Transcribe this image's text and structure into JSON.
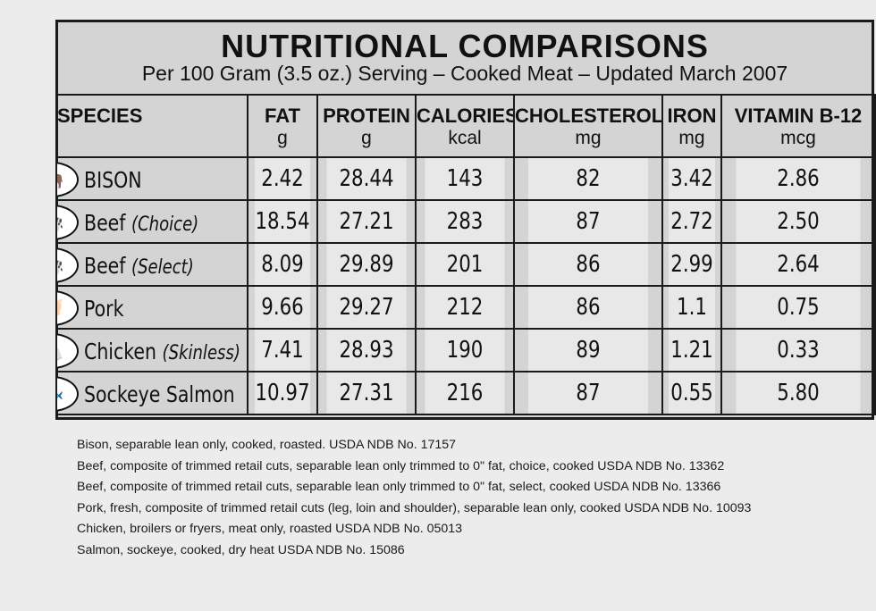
{
  "title": "NUTRITIONAL COMPARISONS",
  "subtitle": "Per 100 Gram (3.5 oz.) Serving – Cooked Meat – Updated March 2007",
  "headers": [
    {
      "label": "SPECIES",
      "unit": ""
    },
    {
      "label": "FAT",
      "unit": "g"
    },
    {
      "label": "PROTEIN",
      "unit": "g"
    },
    {
      "label": "CALORIES",
      "unit": "kcal"
    },
    {
      "label": "CHOLESTEROL",
      "unit": "mg"
    },
    {
      "label": "IRON",
      "unit": "mg"
    },
    {
      "label": "VITAMIN B-12",
      "unit": "mcg"
    }
  ],
  "rows": [
    {
      "icon": "bison-icon",
      "name": "BISON",
      "note": "",
      "fat": "2.42",
      "protein": "28.44",
      "calories": "143",
      "cholesterol": "82",
      "iron": "3.42",
      "b12": "2.86"
    },
    {
      "icon": "cow-icon",
      "name": "Beef",
      "note": "(Choice)",
      "fat": "18.54",
      "protein": "27.21",
      "calories": "283",
      "cholesterol": "87",
      "iron": "2.72",
      "b12": "2.50"
    },
    {
      "icon": "cow-icon",
      "name": "Beef",
      "note": "(Select)",
      "fat": "8.09",
      "protein": "29.89",
      "calories": "201",
      "cholesterol": "86",
      "iron": "2.99",
      "b12": "2.64"
    },
    {
      "icon": "pig-icon",
      "name": "Pork",
      "note": "",
      "fat": "9.66",
      "protein": "29.27",
      "calories": "212",
      "cholesterol": "86",
      "iron": "1.1",
      "b12": "0.75"
    },
    {
      "icon": "chicken-icon",
      "name": "Chicken",
      "note": "(Skinless)",
      "fat": "7.41",
      "protein": "28.93",
      "calories": "190",
      "cholesterol": "89",
      "iron": "1.21",
      "b12": "0.33"
    },
    {
      "icon": "fish-icon",
      "name": "Sockeye Salmon",
      "note": "",
      "fat": "10.97",
      "protein": "27.31",
      "calories": "216",
      "cholesterol": "87",
      "iron": "0.55",
      "b12": "5.80"
    }
  ],
  "references": [
    "Bison, separable lean only, cooked, roasted. USDA NDB No. 17157",
    "Beef, composite of trimmed retail cuts, separable lean only trimmed to 0\" fat, choice, cooked USDA NDB No. 13362",
    "Beef, composite of trimmed retail cuts, separable lean only trimmed to 0\" fat, select, cooked USDA NDB No. 13366",
    "Pork, fresh, composite of trimmed retail cuts (leg, loin and shoulder), separable lean only, cooked USDA NDB No. 10093",
    "Chicken, broilers or fryers, meat only, roasted USDA NDB No. 05013",
    "Salmon, sockeye, cooked, dry heat USDA NDB No. 15086"
  ]
}
